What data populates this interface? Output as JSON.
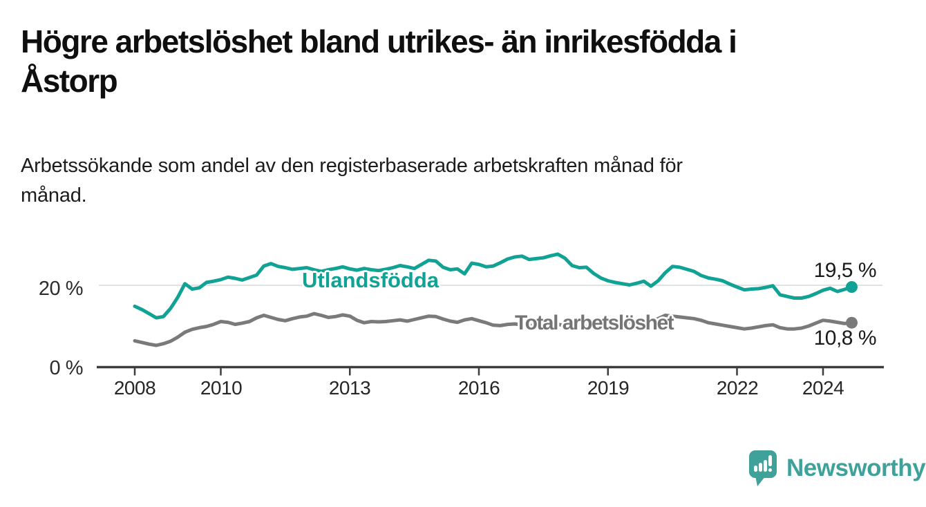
{
  "title": {
    "line1": "Högre arbetslöshet bland utrikes- än inrikesfödda i",
    "line2": "Åstorp"
  },
  "subtitle": {
    "line1": "Arbetssökande som andel av den registerbaserade arbetskraften månad för",
    "line2": "månad."
  },
  "branding": {
    "name": "Newsworthy",
    "icon": "newsworthy-speech-bubble-bar-chart-icon",
    "color": "#3FA29A"
  },
  "chart_data": {
    "type": "line",
    "unit": "%",
    "x_start": 2008.0,
    "x_step_years": 0.166667,
    "x_end": 2024.667,
    "grid": "single horizontal gridline at 20 %",
    "legend": "inline labels on lines, end-value labels at right",
    "x_ticks": [
      {
        "year": 2008,
        "label": "2008"
      },
      {
        "year": 2010,
        "label": "2010"
      },
      {
        "year": 2013,
        "label": "2013"
      },
      {
        "year": 2016,
        "label": "2016"
      },
      {
        "year": 2019,
        "label": "2019"
      },
      {
        "year": 2022,
        "label": "2022"
      },
      {
        "year": 2024,
        "label": "2024"
      }
    ],
    "y_axis": {
      "range": [
        0,
        30
      ],
      "ticks": [
        {
          "value": 0,
          "label": "0 %"
        },
        {
          "value": 20,
          "label": "20 %"
        }
      ]
    },
    "series": [
      {
        "name": "Utlandsfödda",
        "color": "#10A294",
        "end_value": 19.5,
        "end_label": "19,5 %",
        "values": [
          14.8,
          14.0,
          13.0,
          12.0,
          12.3,
          14.3,
          17.0,
          20.3,
          19.0,
          19.3,
          20.6,
          20.9,
          21.3,
          21.9,
          21.6,
          21.2,
          21.8,
          22.4,
          24.6,
          25.2,
          24.5,
          24.2,
          23.8,
          24.0,
          24.2,
          23.7,
          23.3,
          23.7,
          24.0,
          24.4,
          23.9,
          23.6,
          24.0,
          23.7,
          23.5,
          23.8,
          24.2,
          24.7,
          24.4,
          24.0,
          25.0,
          26.0,
          25.8,
          24.3,
          23.7,
          23.9,
          22.7,
          25.3,
          25.0,
          24.4,
          24.6,
          25.4,
          26.3,
          26.8,
          27.0,
          26.2,
          26.4,
          26.6,
          27.1,
          27.5,
          26.5,
          24.7,
          24.2,
          24.3,
          22.8,
          21.7,
          21.0,
          20.6,
          20.3,
          20.0,
          20.4,
          20.9,
          19.7,
          21.0,
          23.0,
          24.5,
          24.3,
          23.8,
          23.3,
          22.3,
          21.7,
          21.4,
          21.0,
          20.2,
          19.5,
          18.8,
          19.0,
          19.1,
          19.4,
          19.8,
          17.6,
          17.2,
          16.8,
          16.8,
          17.2,
          17.9,
          18.7,
          19.2,
          18.4,
          18.9,
          19.5
        ]
      },
      {
        "name": "Total arbetslöshet",
        "color": "#7a7a7a",
        "end_value": 10.8,
        "end_label": "10,8 %",
        "values": [
          6.4,
          6.0,
          5.6,
          5.3,
          5.7,
          6.3,
          7.3,
          8.5,
          9.2,
          9.6,
          9.9,
          10.4,
          11.1,
          10.9,
          10.4,
          10.7,
          11.1,
          12.0,
          12.6,
          12.1,
          11.6,
          11.3,
          11.8,
          12.2,
          12.4,
          13.0,
          12.6,
          12.1,
          12.3,
          12.7,
          12.4,
          11.4,
          10.8,
          11.1,
          11.0,
          11.1,
          11.3,
          11.5,
          11.2,
          11.6,
          12.0,
          12.4,
          12.3,
          11.7,
          11.2,
          10.9,
          11.5,
          11.8,
          11.3,
          10.8,
          10.2,
          10.1,
          10.4,
          10.5,
          10.3,
          10.1,
          10.2,
          10.0,
          10.2,
          10.4,
          10.1,
          9.9,
          9.8,
          9.9,
          10.0,
          10.2,
          10.4,
          10.6,
          10.8,
          11.0,
          11.2,
          11.4,
          11.2,
          11.8,
          12.6,
          12.4,
          12.2,
          12.0,
          11.8,
          11.4,
          10.8,
          10.5,
          10.2,
          9.9,
          9.6,
          9.3,
          9.5,
          9.8,
          10.1,
          10.3,
          9.6,
          9.3,
          9.3,
          9.5,
          10.0,
          10.7,
          11.4,
          11.2,
          10.9,
          10.6,
          10.8
        ]
      }
    ]
  }
}
